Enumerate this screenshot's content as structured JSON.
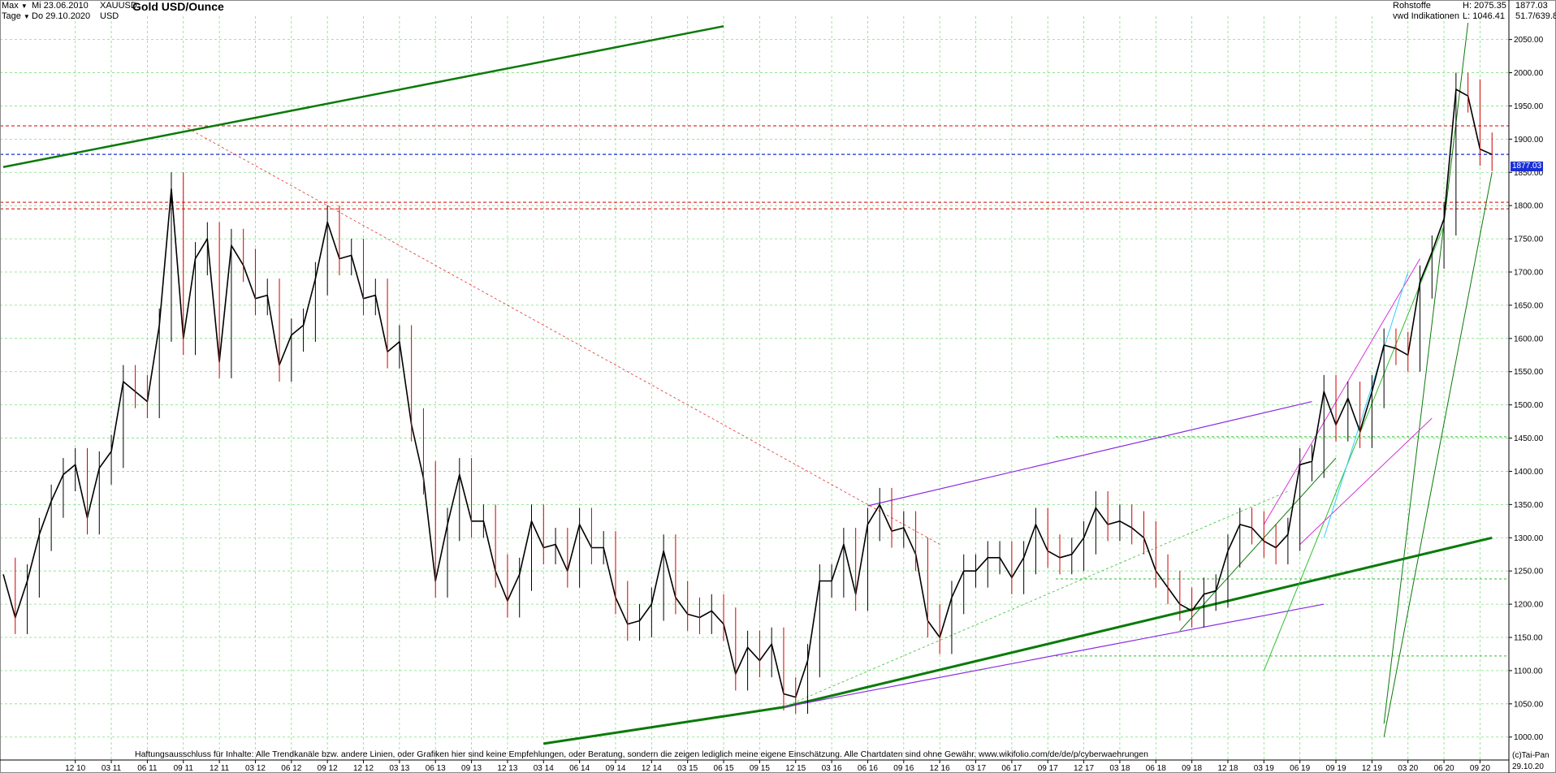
{
  "header": {
    "range_select": "Max",
    "period_select": "Tage",
    "date_from": "Mi 23.06.2010",
    "date_to": "Do 29.10.2020",
    "symbol": "XAUUSD",
    "currency": "USD",
    "title": "Gold USD/Ounce",
    "category": "Rohstoffe",
    "source": "vwd Indikationen",
    "high_label": "H: 2075.35",
    "low_label": "L: 1046.41",
    "last_price": "1877.03",
    "change": "51.7/639.8"
  },
  "footer": {
    "disclaimer": "Haftungsausschluss für Inhalte: Alle Trendkanäle bzw. andere Linien, oder Grafiken hier sind keine Empfehlungen, oder Beratung, sondern die zeigen lediglich meine eigene Einschätzung. Alle Chartdaten sind ohne Gewähr.  www.wikifolio.com/de/de/p/cyberwaehrungen",
    "copyright": "(c)Tai-Pan",
    "end_date": "29.10.20"
  },
  "colors": {
    "candles": "#000000",
    "candles_down": "#cc0000",
    "trend_green": "#0a7a0a",
    "trend_light_green": "#2fbf2f",
    "trend_purple": "#8a2be2",
    "trend_magenta": "#d633d6",
    "trend_cyan": "#33ccff",
    "level_red": "#e03030",
    "level_blue": "#1a2fd6",
    "grid": "#7fe07f"
  },
  "chart_data": {
    "type": "line",
    "title": "Gold USD/Ounce",
    "ylim": [
      985,
      2085
    ],
    "y_ticks": [
      1000,
      1050,
      1100,
      1150,
      1200,
      1250,
      1300,
      1350,
      1400,
      1450,
      1500,
      1550,
      1600,
      1650,
      1700,
      1750,
      1800,
      1850,
      1900,
      1950,
      2000,
      2050
    ],
    "x_tick_labels": [
      "12 10",
      "03 11",
      "06 11",
      "09 11",
      "12 11",
      "03 12",
      "06 12",
      "09 12",
      "12 12",
      "03 13",
      "06 13",
      "09 13",
      "12 13",
      "03 14",
      "06 14",
      "09 14",
      "12 14",
      "03 15",
      "06 15",
      "09 15",
      "12 15",
      "03 16",
      "06 16",
      "09 16",
      "12 16",
      "03 17",
      "06 17",
      "09 17",
      "12 17",
      "03 18",
      "06 18",
      "09 18",
      "12 18",
      "03 19",
      "06 19",
      "09 19",
      "12 19",
      "03 20",
      "06 20",
      "09 20"
    ],
    "x_range": [
      "2010-06",
      "2020-10"
    ],
    "grid": true,
    "series": [
      {
        "name": "XAUUSD",
        "points": [
          [
            "2010-06",
            1245
          ],
          [
            "2010-07",
            1180
          ],
          [
            "2010-08",
            1235
          ],
          [
            "2010-09",
            1305
          ],
          [
            "2010-10",
            1355
          ],
          [
            "2010-11",
            1395
          ],
          [
            "2010-12",
            1410
          ],
          [
            "2011-01",
            1330
          ],
          [
            "2011-02",
            1405
          ],
          [
            "2011-03",
            1430
          ],
          [
            "2011-04",
            1535
          ],
          [
            "2011-05",
            1520
          ],
          [
            "2011-06",
            1505
          ],
          [
            "2011-07",
            1620
          ],
          [
            "2011-08",
            1825
          ],
          [
            "2011-09",
            1600
          ],
          [
            "2011-10",
            1720
          ],
          [
            "2011-11",
            1750
          ],
          [
            "2011-12",
            1565
          ],
          [
            "2012-01",
            1740
          ],
          [
            "2012-02",
            1710
          ],
          [
            "2012-03",
            1660
          ],
          [
            "2012-04",
            1665
          ],
          [
            "2012-05",
            1560
          ],
          [
            "2012-06",
            1605
          ],
          [
            "2012-07",
            1620
          ],
          [
            "2012-08",
            1690
          ],
          [
            "2012-09",
            1775
          ],
          [
            "2012-10",
            1720
          ],
          [
            "2012-11",
            1725
          ],
          [
            "2012-12",
            1660
          ],
          [
            "2013-01",
            1665
          ],
          [
            "2013-02",
            1580
          ],
          [
            "2013-03",
            1595
          ],
          [
            "2013-04",
            1470
          ],
          [
            "2013-05",
            1390
          ],
          [
            "2013-06",
            1235
          ],
          [
            "2013-07",
            1320
          ],
          [
            "2013-08",
            1395
          ],
          [
            "2013-09",
            1325
          ],
          [
            "2013-10",
            1325
          ],
          [
            "2013-11",
            1250
          ],
          [
            "2013-12",
            1205
          ],
          [
            "2014-01",
            1245
          ],
          [
            "2014-02",
            1325
          ],
          [
            "2014-03",
            1285
          ],
          [
            "2014-04",
            1290
          ],
          [
            "2014-05",
            1250
          ],
          [
            "2014-06",
            1320
          ],
          [
            "2014-07",
            1285
          ],
          [
            "2014-08",
            1285
          ],
          [
            "2014-09",
            1210
          ],
          [
            "2014-10",
            1170
          ],
          [
            "2014-11",
            1175
          ],
          [
            "2014-12",
            1200
          ],
          [
            "2015-01",
            1280
          ],
          [
            "2015-02",
            1210
          ],
          [
            "2015-03",
            1185
          ],
          [
            "2015-04",
            1180
          ],
          [
            "2015-05",
            1190
          ],
          [
            "2015-06",
            1170
          ],
          [
            "2015-07",
            1095
          ],
          [
            "2015-08",
            1135
          ],
          [
            "2015-09",
            1115
          ],
          [
            "2015-10",
            1140
          ],
          [
            "2015-11",
            1065
          ],
          [
            "2015-12",
            1060
          ],
          [
            "2016-01",
            1115
          ],
          [
            "2016-02",
            1235
          ],
          [
            "2016-03",
            1235
          ],
          [
            "2016-04",
            1290
          ],
          [
            "2016-05",
            1215
          ],
          [
            "2016-06",
            1320
          ],
          [
            "2016-07",
            1350
          ],
          [
            "2016-08",
            1310
          ],
          [
            "2016-09",
            1315
          ],
          [
            "2016-10",
            1275
          ],
          [
            "2016-11",
            1175
          ],
          [
            "2016-12",
            1150
          ],
          [
            "2017-01",
            1210
          ],
          [
            "2017-02",
            1250
          ],
          [
            "2017-03",
            1250
          ],
          [
            "2017-04",
            1270
          ],
          [
            "2017-05",
            1270
          ],
          [
            "2017-06",
            1240
          ],
          [
            "2017-07",
            1270
          ],
          [
            "2017-08",
            1320
          ],
          [
            "2017-09",
            1280
          ],
          [
            "2017-10",
            1270
          ],
          [
            "2017-11",
            1275
          ],
          [
            "2017-12",
            1300
          ],
          [
            "2018-01",
            1345
          ],
          [
            "2018-02",
            1320
          ],
          [
            "2018-03",
            1325
          ],
          [
            "2018-04",
            1315
          ],
          [
            "2018-05",
            1300
          ],
          [
            "2018-06",
            1250
          ],
          [
            "2018-07",
            1225
          ],
          [
            "2018-08",
            1200
          ],
          [
            "2018-09",
            1190
          ],
          [
            "2018-10",
            1215
          ],
          [
            "2018-11",
            1220
          ],
          [
            "2018-12",
            1280
          ],
          [
            "2019-01",
            1320
          ],
          [
            "2019-02",
            1315
          ],
          [
            "2019-03",
            1295
          ],
          [
            "2019-04",
            1285
          ],
          [
            "2019-05",
            1305
          ],
          [
            "2019-06",
            1410
          ],
          [
            "2019-07",
            1415
          ],
          [
            "2019-08",
            1520
          ],
          [
            "2019-09",
            1470
          ],
          [
            "2019-10",
            1510
          ],
          [
            "2019-11",
            1460
          ],
          [
            "2019-12",
            1520
          ],
          [
            "2020-01",
            1590
          ],
          [
            "2020-02",
            1585
          ],
          [
            "2020-03",
            1575
          ],
          [
            "2020-04",
            1685
          ],
          [
            "2020-05",
            1730
          ],
          [
            "2020-06",
            1780
          ],
          [
            "2020-07",
            1975
          ],
          [
            "2020-08",
            1965
          ],
          [
            "2020-09",
            1885
          ],
          [
            "2020-10",
            1877
          ]
        ]
      }
    ],
    "horizontal_levels": [
      1920,
      1877.03,
      1805,
      1795
    ],
    "annotations": []
  }
}
